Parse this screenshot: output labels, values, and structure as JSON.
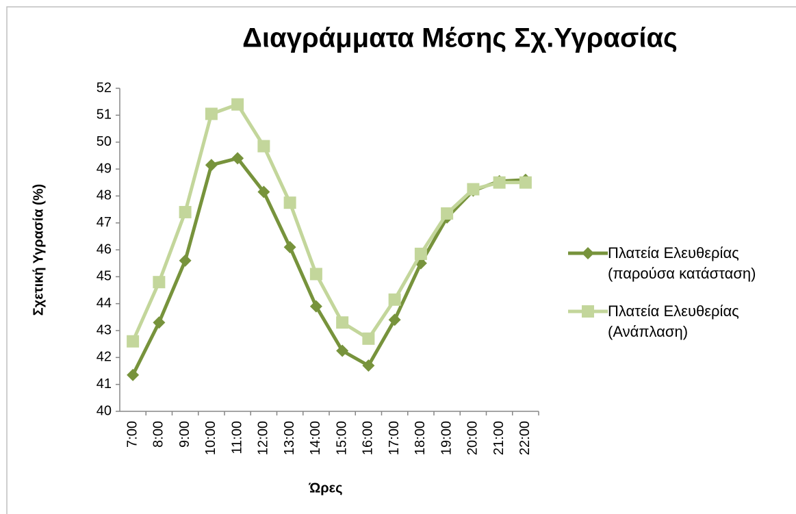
{
  "chart_data": {
    "type": "line",
    "title": "Διαγράμματα Μέσης Σχ.Υγρασίας",
    "x_label": "Ώρες",
    "y_label": "Σχετική Υγρασία (%)",
    "categories": [
      "7:00",
      "8:00",
      "9:00",
      "10:00",
      "11:00",
      "12:00",
      "13:00",
      "14:00",
      "15:00",
      "16:00",
      "17:00",
      "18:00",
      "19:00",
      "20:00",
      "21:00",
      "22:00"
    ],
    "series": [
      {
        "name": "Πλατεία Ελευθερίας (παρούσα κατάσταση)",
        "color": "#77933c",
        "marker": "diamond",
        "values": [
          41.35,
          43.3,
          45.6,
          49.15,
          49.4,
          48.15,
          46.1,
          43.9,
          42.25,
          41.7,
          43.4,
          45.5,
          47.2,
          48.2,
          48.55,
          48.6
        ]
      },
      {
        "name": "Πλατεία Ελευθερίας (Ανάπλαση)",
        "color": "#c3d69b",
        "marker": "square",
        "values": [
          42.6,
          44.8,
          47.4,
          51.05,
          51.4,
          49.85,
          47.75,
          45.1,
          43.3,
          42.7,
          44.15,
          45.85,
          47.35,
          48.25,
          48.5,
          48.5
        ]
      }
    ],
    "ylim": [
      40,
      52
    ],
    "yticks": [
      40,
      41,
      42,
      43,
      44,
      45,
      46,
      47,
      48,
      49,
      50,
      51,
      52
    ],
    "grid": false,
    "legend": "right"
  }
}
